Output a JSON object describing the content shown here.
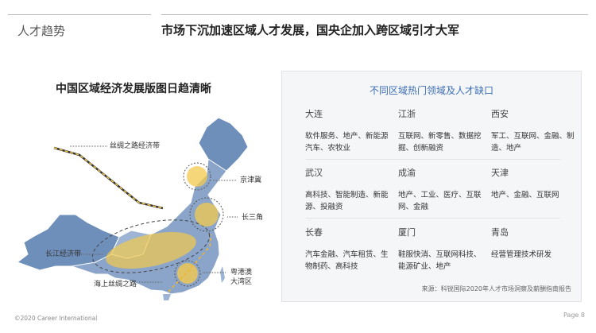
{
  "header": {
    "section": "人才趋势",
    "title": "市场下沉加速区域人才发展，国央企加入跨区域引才大军"
  },
  "map": {
    "title": "中国区域经济发展版图日趋清晰",
    "labels": {
      "silk_road_belt": "丝绸之路经济带",
      "jingjinji": "京津冀",
      "yangtze_delta": "长三角",
      "yangtze_belt": "长江经济带",
      "gba_line1": "粤港澳",
      "gba_line2": "大湾区",
      "maritime_silk_road": "海上丝绸之路"
    },
    "colors": {
      "land": "#7f9cc2",
      "highlight": "#f2c94c"
    }
  },
  "card": {
    "title": "不同区域热门领域及人才缺口",
    "regions": [
      {
        "city": "大连",
        "fields": "软件服务、地产、新能源汽车、农牧业"
      },
      {
        "city": "江浙",
        "fields": "互联网、新零售、数据挖掘、创新融资"
      },
      {
        "city": "西安",
        "fields": "军工、互联网、金融、制造、地产"
      },
      {
        "city": "武汉",
        "fields": "高科技、智能制造、新能源、投融资"
      },
      {
        "city": "成渝",
        "fields": "地产、工业、医疗、互联网、金融"
      },
      {
        "city": "天津",
        "fields": "地产、金融、互联网"
      },
      {
        "city": "长春",
        "fields": "汽车金融、汽车租赁、生物制药、高科技"
      },
      {
        "city": "厦门",
        "fields": "鞋服快消、互联网科技、能源矿业、地产"
      },
      {
        "city": "青岛",
        "fields": "经营管理技术研发"
      }
    ],
    "source": "来源：科锐国际2020年人才市场洞察及薪酬指南报告"
  },
  "footer": {
    "copyright": "©2020 Career  International",
    "page": "Page 8"
  }
}
